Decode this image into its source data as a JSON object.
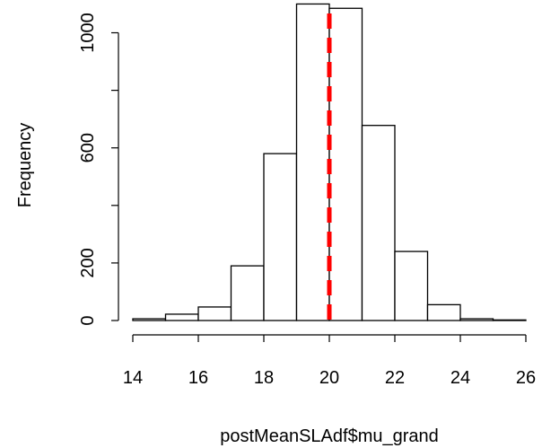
{
  "chart_data": {
    "type": "bar",
    "subtype": "histogram",
    "title": "",
    "xlabel": "postMeanSLAdf$mu_grand",
    "ylabel": "Frequency",
    "bin_edges": [
      14,
      15,
      16,
      17,
      18,
      19,
      20,
      21,
      22,
      23,
      24,
      25,
      26
    ],
    "counts": [
      6,
      22,
      47,
      190,
      580,
      1100,
      1085,
      678,
      240,
      55,
      6,
      2
    ],
    "xlim": [
      14,
      26
    ],
    "ylim": [
      0,
      1100
    ],
    "x_ticks": [
      "14",
      "16",
      "18",
      "20",
      "22",
      "24",
      "26"
    ],
    "y_ticks": [
      "0",
      "200",
      "600",
      "1000"
    ],
    "reference_line": {
      "x": 20,
      "color": "#ff0000",
      "style": "dashed"
    },
    "bar_fill": "#ffffff",
    "bar_stroke": "#000000",
    "grid": false
  }
}
